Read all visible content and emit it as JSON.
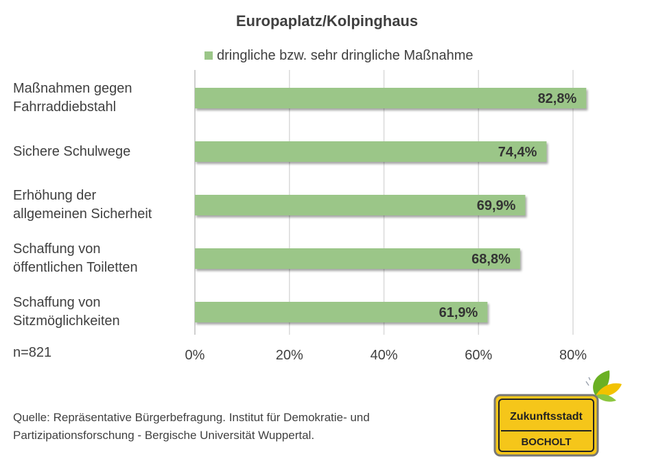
{
  "chart_data": {
    "type": "bar",
    "orientation": "horizontal",
    "title": "Europaplatz/Kolpinghaus",
    "categories": [
      [
        "Maßnahmen gegen",
        "Fahrraddiebstahl"
      ],
      [
        "Sichere Schulwege"
      ],
      [
        "Erhöhung der",
        "allgemeinen Sicherheit"
      ],
      [
        "Schaffung von",
        "öffentlichen Toiletten"
      ],
      [
        "Schaffung von",
        "Sitzmöglichkeiten"
      ]
    ],
    "series": [
      {
        "name": "dringliche bzw. sehr dringliche Maßnahme",
        "values": [
          82.8,
          74.4,
          69.9,
          68.8,
          61.9
        ],
        "labels": [
          "82,8%",
          "74,4%",
          "69,9%",
          "68,8%",
          "61,9%"
        ],
        "color": "#9bc688"
      }
    ],
    "xlim": [
      0,
      80
    ],
    "xticks": [
      0,
      20,
      40,
      60,
      80
    ],
    "xtick_labels": [
      "0%",
      "20%",
      "40%",
      "60%",
      "80%"
    ],
    "grid": "vertical",
    "legend": "top"
  },
  "sample_size": "n=821",
  "source_lines": [
    "Quelle: Repräsentative Bürgerbefragung. Institut für Demokratie- und",
    "Partizipationsforschung - Bergische Universität Wuppertal."
  ],
  "logo": {
    "line1": "Zukunftsstadt",
    "line2": "BOCHOLT",
    "sign_color": "#f5c61a",
    "leaf_colors": [
      "#6ab023",
      "#f2c200"
    ]
  }
}
